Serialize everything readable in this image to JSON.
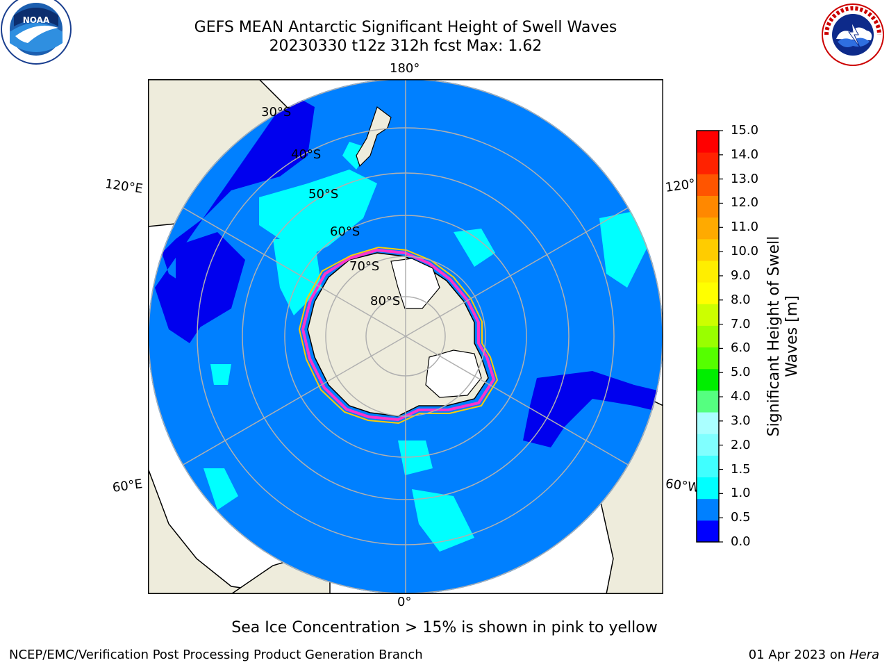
{
  "header": {
    "title_line1": "GEFS MEAN Antarctic Significant Height of Swell Waves",
    "title_line2": "20230330 t12z 312h fcst   Max: 1.62"
  },
  "logos": {
    "left": "NOAA",
    "right": "NATIONAL WEATHER SERVICE"
  },
  "map": {
    "projection": "south-polar-stereographic",
    "longitude_labels": {
      "top": "180°",
      "bottom": "0°",
      "left_upper": "120°E",
      "left_lower": "60°E",
      "right_upper": "120°",
      "right_lower": "60°W"
    },
    "latitude_labels": [
      "30°S",
      "40°S",
      "50°S",
      "60°S",
      "70°S",
      "80°S"
    ],
    "colors": {
      "ocean_base": "#0080ff",
      "land": "#eeecdc",
      "ice_shelf": "#ffffff",
      "gridline": "#b0b0b0",
      "sea_ice_edge_pink": "#ff33cc",
      "sea_ice_edge_yellow": "#ffcc00"
    }
  },
  "colorbar": {
    "label": "Significant Height of Swell Waves [m]",
    "ticks": [
      "0.0",
      "0.5",
      "1.0",
      "1.5",
      "2.0",
      "3.0",
      "4.0",
      "5.0",
      "6.0",
      "7.0",
      "8.0",
      "9.0",
      "10.0",
      "11.0",
      "12.0",
      "13.0",
      "14.0",
      "15.0"
    ],
    "colors": [
      "#0000ff",
      "#0080ff",
      "#00ffff",
      "#40ffff",
      "#80ffff",
      "#aaffff",
      "#55ff80",
      "#00ee00",
      "#55ff00",
      "#99ff00",
      "#ccff00",
      "#ffff00",
      "#ffee00",
      "#ffcc00",
      "#ffaa00",
      "#ff8800",
      "#ff5500",
      "#ff2200",
      "#ff0000"
    ]
  },
  "notes": {
    "sea_ice": "Sea Ice Concentration > 15% is shown in pink to yellow"
  },
  "footer": {
    "left": "NCEP/EMC/Verification Post Processing Product Generation Branch",
    "date": "01 Apr 2023 on ",
    "machine": "Hera"
  }
}
